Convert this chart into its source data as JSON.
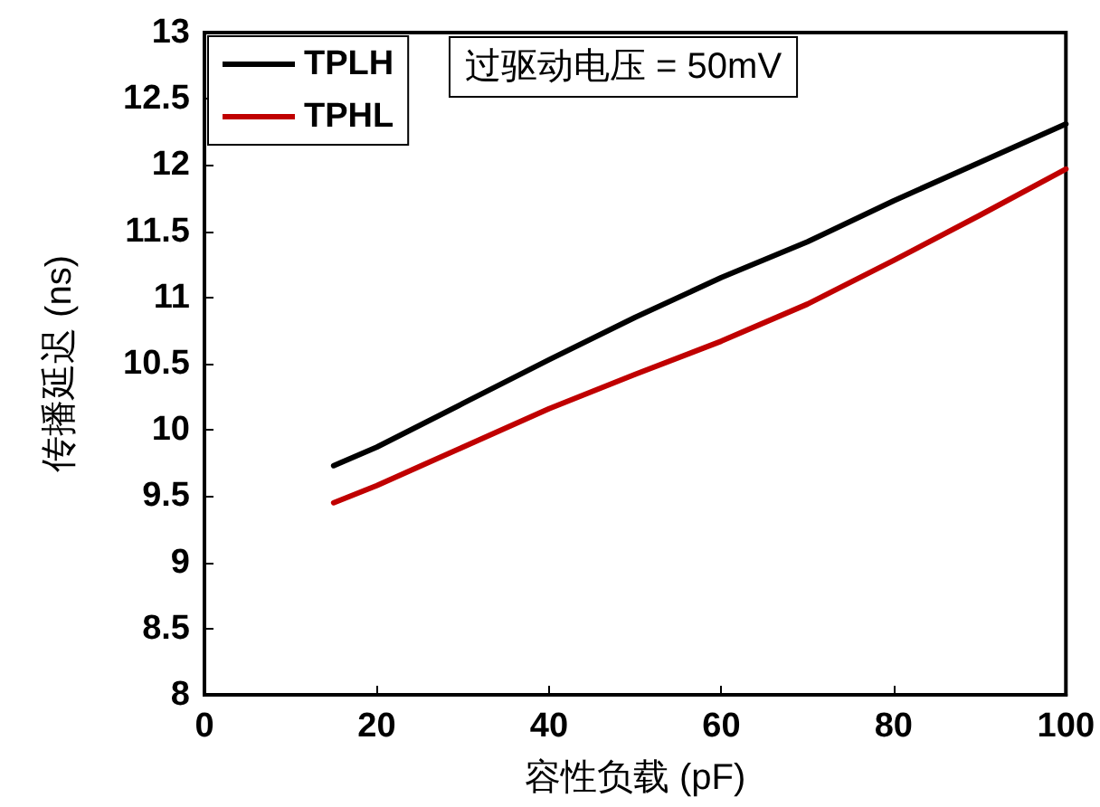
{
  "chart_data": {
    "type": "line",
    "xlabel": "容性负载 (pF)",
    "ylabel": "传播延迟 (ns)",
    "annotations": [
      "过驱动电压 = 50mV"
    ],
    "x": [
      15,
      20,
      30,
      40,
      50,
      60,
      70,
      80,
      90,
      100
    ],
    "series": [
      {
        "name": "TPLH",
        "color": "#000000",
        "values": [
          9.73,
          9.87,
          10.2,
          10.53,
          10.85,
          11.15,
          11.42,
          11.73,
          12.02,
          12.31
        ]
      },
      {
        "name": "TPHL",
        "color": "#c00000",
        "values": [
          9.45,
          9.58,
          9.87,
          10.16,
          10.42,
          10.67,
          10.95,
          11.28,
          11.62,
          11.97
        ]
      }
    ],
    "xlim": [
      0,
      100
    ],
    "xticks": [
      0,
      20,
      40,
      60,
      80,
      100
    ],
    "ylim": [
      8,
      13
    ],
    "yticks": [
      8,
      8.5,
      9,
      9.5,
      10,
      10.5,
      11,
      11.5,
      12,
      12.5,
      13
    ],
    "grid": false,
    "legend": "top left",
    "marker": "none",
    "line_style": "solid"
  }
}
